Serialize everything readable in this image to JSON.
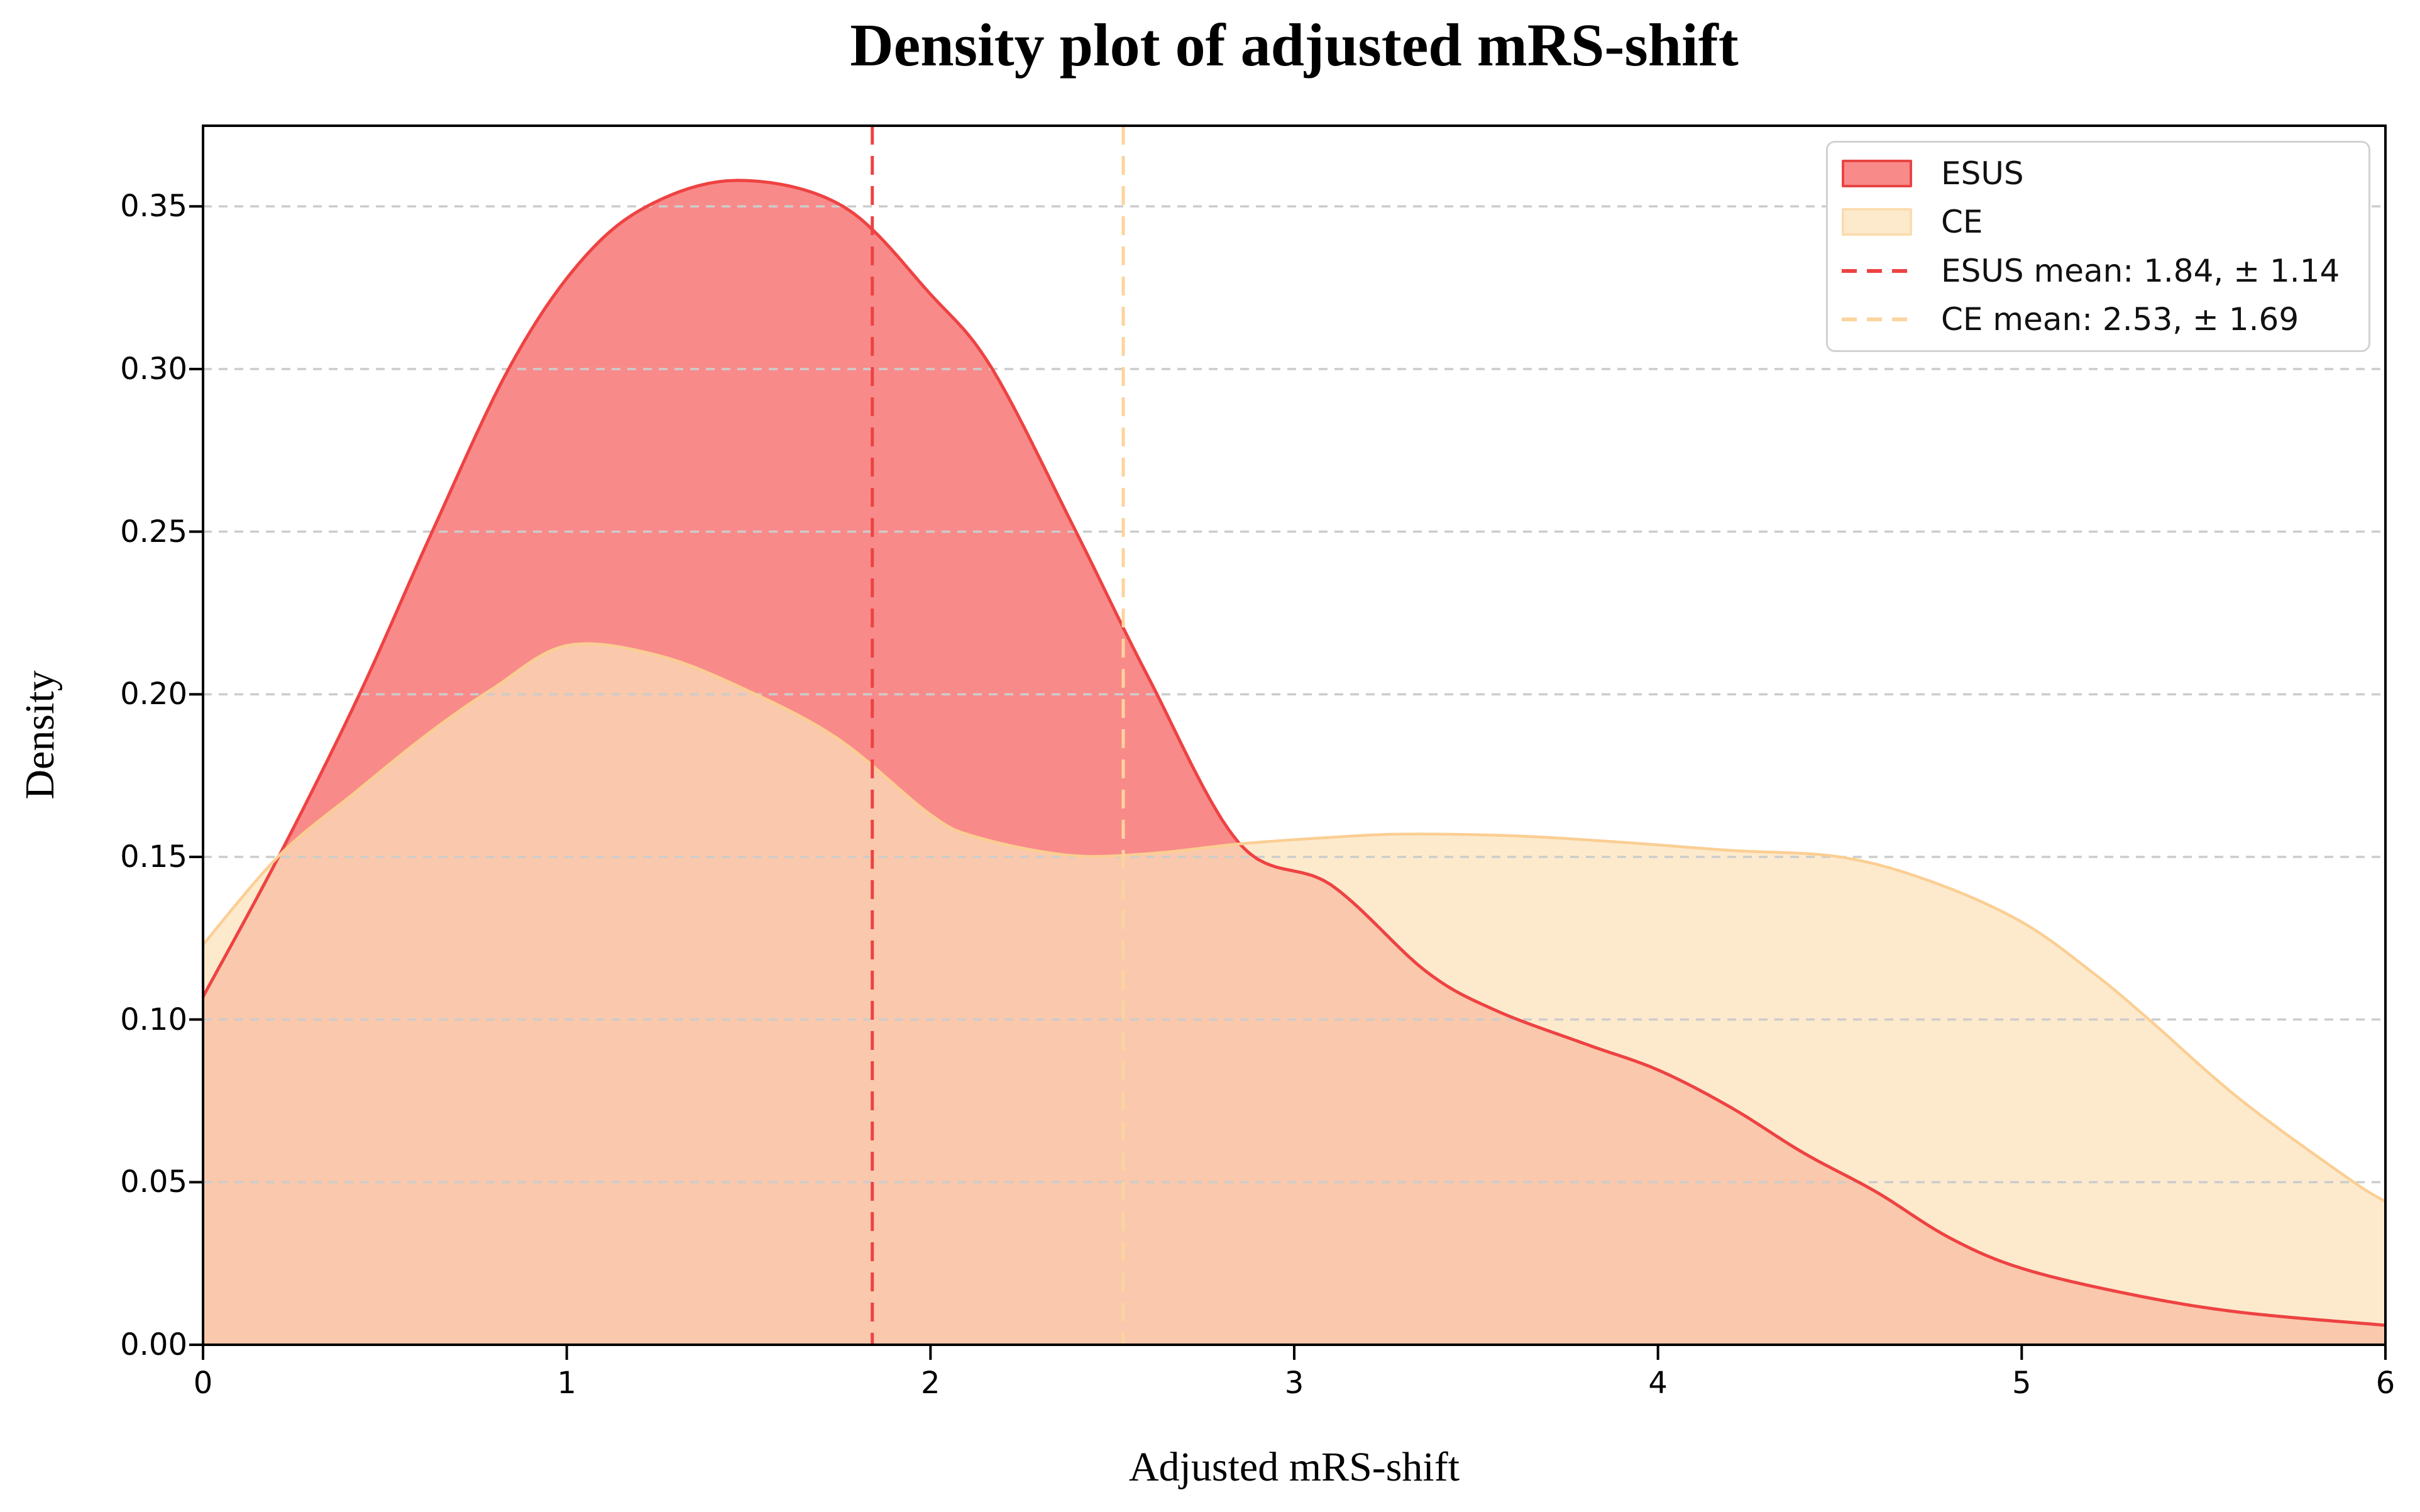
{
  "title": "Density plot of adjusted mRS-shift",
  "axes": {
    "xlabel": "Adjusted mRS-shift",
    "ylabel": "Density",
    "xticks": [
      "0",
      "1",
      "2",
      "3",
      "4",
      "5",
      "6"
    ],
    "yticks": [
      "0.00",
      "0.05",
      "0.10",
      "0.15",
      "0.20",
      "0.25",
      "0.30",
      "0.35"
    ]
  },
  "legend": {
    "items": [
      {
        "label": "ESUS",
        "type": "patch",
        "fill": "#F98A8A",
        "edge": "#E84444"
      },
      {
        "label": "CE",
        "type": "patch",
        "fill": "#FDEACD",
        "edge": "#FBDCB0"
      },
      {
        "label": "ESUS mean: 1.84, ± 1.14",
        "type": "dash",
        "edge": "#EE4242"
      },
      {
        "label": "CE mean: 2.53, ± 1.69",
        "type": "dash",
        "edge": "#FBD49E"
      }
    ]
  },
  "chart_data": {
    "type": "area",
    "subtype": "kde-density",
    "title": "Density plot of adjusted mRS-shift",
    "xlabel": "Adjusted mRS-shift",
    "ylabel": "Density",
    "xlim": [
      0,
      6
    ],
    "ylim": [
      0,
      0.3748
    ],
    "grid": "horizontal-dashed",
    "grid_color": "#cccccc",
    "legend_position": "upper right",
    "overlap_fill": "#FAC8AC",
    "series": [
      {
        "name": "ESUS",
        "line_color": "#EE4242",
        "fill_color": "#F98A8A",
        "mean": 1.84,
        "sd": 1.14,
        "points": [
          [
            0.0,
            0.107
          ],
          [
            0.21,
            0.1505
          ],
          [
            0.43,
            0.2
          ],
          [
            0.63,
            0.25
          ],
          [
            0.84,
            0.3
          ],
          [
            1.03,
            0.332
          ],
          [
            1.22,
            0.35
          ],
          [
            1.47,
            0.358
          ],
          [
            1.76,
            0.35
          ],
          [
            2.0,
            0.323
          ],
          [
            2.17,
            0.3
          ],
          [
            2.4,
            0.25
          ],
          [
            2.6,
            0.205
          ],
          [
            2.85,
            0.154
          ],
          [
            3.1,
            0.1415
          ],
          [
            3.36,
            0.115
          ],
          [
            3.55,
            0.103
          ],
          [
            3.8,
            0.0925
          ],
          [
            4.0,
            0.0845
          ],
          [
            4.2,
            0.073
          ],
          [
            4.4,
            0.059
          ],
          [
            4.6,
            0.047
          ],
          [
            4.8,
            0.033
          ],
          [
            5.0,
            0.0235
          ],
          [
            5.3,
            0.0155
          ],
          [
            5.6,
            0.01
          ],
          [
            6.0,
            0.006
          ]
        ]
      },
      {
        "name": "CE",
        "line_color": "#FBCE93",
        "fill_color": "#FDEACD",
        "mean": 2.53,
        "sd": 1.69,
        "points": [
          [
            0.0,
            0.123
          ],
          [
            0.21,
            0.1505
          ],
          [
            0.42,
            0.17
          ],
          [
            0.62,
            0.188
          ],
          [
            0.8,
            0.202
          ],
          [
            1.0,
            0.215
          ],
          [
            1.25,
            0.212
          ],
          [
            1.5,
            0.201
          ],
          [
            1.75,
            0.186
          ],
          [
            2.0,
            0.163
          ],
          [
            2.13,
            0.156
          ],
          [
            2.38,
            0.1505
          ],
          [
            2.6,
            0.151
          ],
          [
            2.85,
            0.154
          ],
          [
            3.1,
            0.156
          ],
          [
            3.3,
            0.157
          ],
          [
            3.6,
            0.1565
          ],
          [
            3.9,
            0.1545
          ],
          [
            4.2,
            0.152
          ],
          [
            4.5,
            0.15
          ],
          [
            4.75,
            0.1425
          ],
          [
            5.0,
            0.13
          ],
          [
            5.2,
            0.114
          ],
          [
            5.35,
            0.1
          ],
          [
            5.6,
            0.0755
          ],
          [
            5.9,
            0.051
          ],
          [
            6.0,
            0.044
          ]
        ]
      }
    ],
    "mean_lines": [
      {
        "series": "ESUS",
        "x": 1.84,
        "color": "#EE4242",
        "label": "ESUS mean: 1.84, ± 1.14"
      },
      {
        "series": "CE",
        "x": 2.53,
        "color": "#FBD49E",
        "label": "CE mean: 2.53, ± 1.69"
      }
    ]
  }
}
